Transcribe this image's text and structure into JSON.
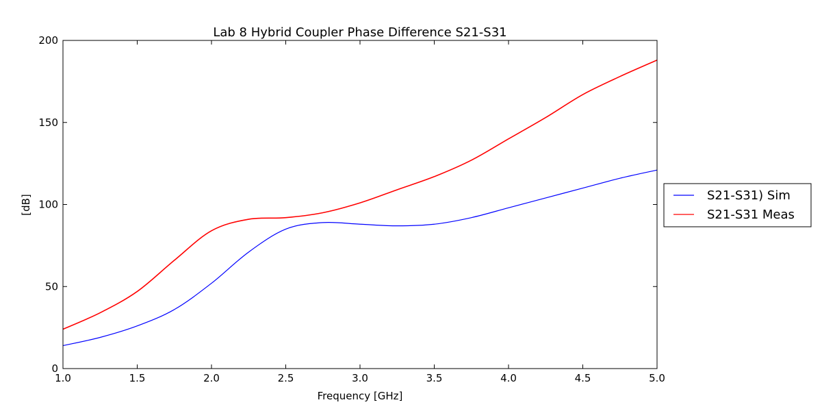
{
  "chart_data": {
    "type": "line",
    "title": "Lab 8 Hybrid Coupler Phase Difference S21-S31",
    "xlabel": "Frequency [GHz]",
    "ylabel": "[dB]",
    "xlim": [
      1.0,
      5.0
    ],
    "ylim": [
      0,
      200
    ],
    "xticks": [
      "1.0",
      "1.5",
      "2.0",
      "2.5",
      "3.0",
      "3.5",
      "4.0",
      "4.5",
      "5.0"
    ],
    "yticks": [
      "0",
      "50",
      "100",
      "150",
      "200"
    ],
    "grid": false,
    "legend_position": "outside-right",
    "series": [
      {
        "name": "S21-S31) Sim",
        "color": "#0000ff",
        "x": [
          1.0,
          1.25,
          1.5,
          1.75,
          2.0,
          2.25,
          2.5,
          2.75,
          3.0,
          3.25,
          3.5,
          3.75,
          4.0,
          4.25,
          4.5,
          4.75,
          5.0
        ],
        "y": [
          14,
          19,
          26,
          36,
          52,
          71,
          85,
          89,
          88,
          87,
          88,
          92,
          98,
          104,
          110,
          116,
          121
        ]
      },
      {
        "name": "S21-S31 Meas",
        "color": "#ff0000",
        "x": [
          1.0,
          1.25,
          1.5,
          1.75,
          2.0,
          2.25,
          2.5,
          2.75,
          3.0,
          3.25,
          3.5,
          3.75,
          4.0,
          4.25,
          4.5,
          4.75,
          5.0
        ],
        "y": [
          24,
          34,
          47,
          66,
          84,
          91,
          92,
          95,
          101,
          109,
          117,
          127,
          140,
          153,
          167,
          178,
          188
        ]
      }
    ]
  }
}
